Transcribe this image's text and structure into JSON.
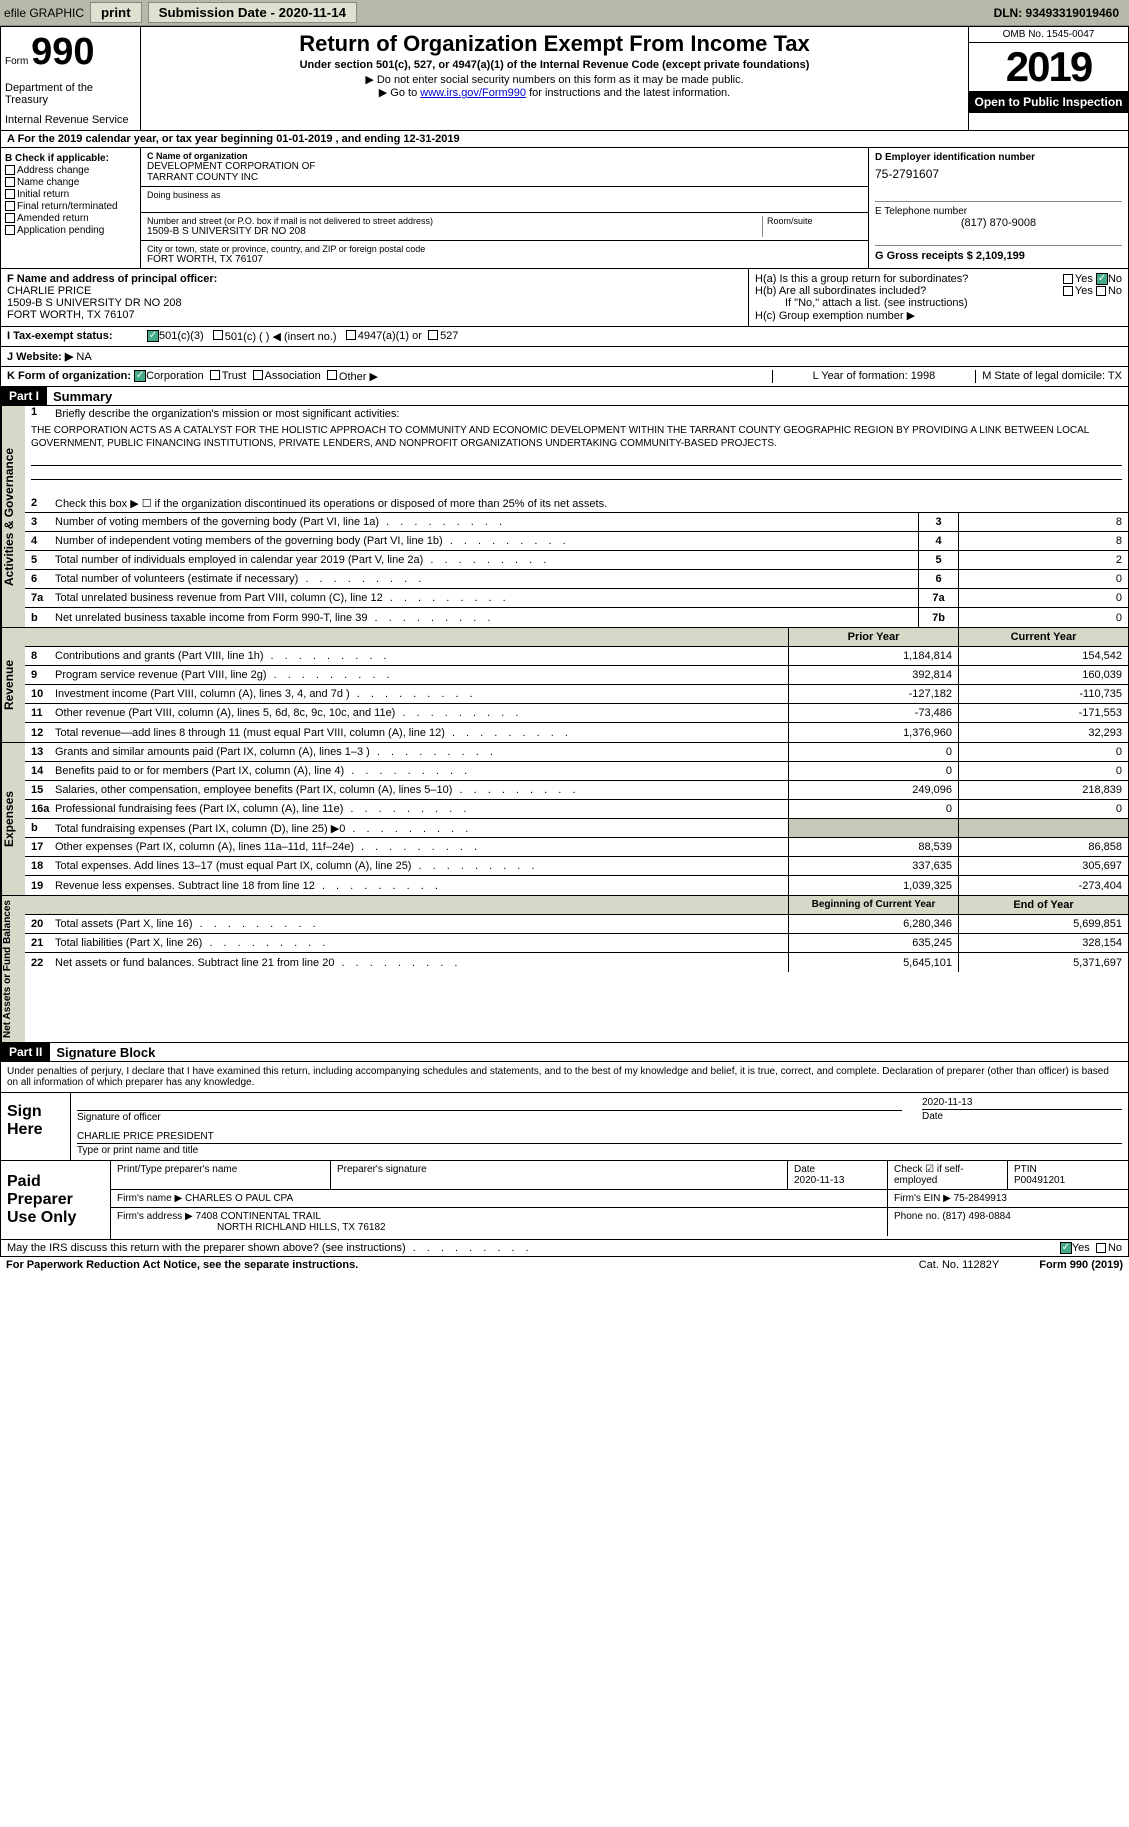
{
  "toolbar": {
    "efile": "efile GRAPHIC",
    "print": "print",
    "submission_label": "Submission Date - 2020-11-14",
    "dln": "DLN: 93493319019460"
  },
  "header": {
    "form_label": "Form",
    "form_number": "990",
    "dept1": "Department of the Treasury",
    "dept2": "Internal Revenue Service",
    "title": "Return of Organization Exempt From Income Tax",
    "subtitle": "Under section 501(c), 527, or 4947(a)(1) of the Internal Revenue Code (except private foundations)",
    "note1": "▶ Do not enter social security numbers on this form as it may be made public.",
    "note2_pre": "▶ Go to ",
    "note2_link": "www.irs.gov/Form990",
    "note2_post": " for instructions and the latest information.",
    "omb": "OMB No. 1545-0047",
    "year": "2019",
    "open": "Open to Public Inspection"
  },
  "line_a": "A For the 2019 calendar year, or tax year beginning 01-01-2019    , and ending 12-31-2019",
  "checkB": {
    "title": "B Check if applicable:",
    "items": [
      "Address change",
      "Name change",
      "Initial return",
      "Final return/terminated",
      "Amended return",
      "Application pending"
    ]
  },
  "boxC": {
    "label": "C Name of organization",
    "name1": "DEVELOPMENT CORPORATION OF",
    "name2": "TARRANT COUNTY INC",
    "dba": "Doing business as",
    "street_label": "Number and street (or P.O. box if mail is not delivered to street address)",
    "room_label": "Room/suite",
    "street": "1509-B S UNIVERSITY DR NO 208",
    "city_label": "City or town, state or province, country, and ZIP or foreign postal code",
    "city": "FORT WORTH, TX  76107"
  },
  "boxD": {
    "label": "D Employer identification number",
    "ein": "75-2791607",
    "tel_label": "E Telephone number",
    "tel": "(817) 870-9008",
    "gross_label": "G Gross receipts $ 2,109,199"
  },
  "boxF": {
    "label": "F  Name and address of principal officer:",
    "name": "CHARLIE PRICE",
    "addr1": "1509-B S UNIVERSITY DR NO 208",
    "addr2": "FORT WORTH, TX  76107"
  },
  "boxH": {
    "a": "H(a)  Is this a group return for subordinates?",
    "b": "H(b)  Are all subordinates included?",
    "note": "If \"No,\" attach a list. (see instructions)",
    "c": "H(c)  Group exemption number ▶",
    "yes": "Yes",
    "no": "No"
  },
  "rowI": {
    "label": "I   Tax-exempt status:",
    "o1": "501(c)(3)",
    "o2": "501(c) (  ) ◀ (insert no.)",
    "o3": "4947(a)(1) or",
    "o4": "527"
  },
  "rowJ": {
    "label": "J   Website: ▶",
    "val": "NA"
  },
  "rowK": {
    "label": "K Form of organization:",
    "o1": "Corporation",
    "o2": "Trust",
    "o3": "Association",
    "o4": "Other ▶",
    "l_label": "L Year of formation: 1998",
    "m_label": "M State of legal domicile: TX"
  },
  "part1": {
    "hdr": "Part I",
    "title": "Summary",
    "side1": "Activities & Governance",
    "side2": "Revenue",
    "side3": "Expenses",
    "side4": "Net Assets or Fund Balances",
    "q1": "Briefly describe the organization's mission or most significant activities:",
    "mission": "THE CORPORATION ACTS AS A CATALYST FOR THE HOLISTIC APPROACH TO COMMUNITY AND ECONOMIC DEVELOPMENT WITHIN THE TARRANT COUNTY GEOGRAPHIC REGION BY PROVIDING A LINK BETWEEN LOCAL GOVERNMENT, PUBLIC FINANCING INSTITUTIONS, PRIVATE LENDERS, AND NONPROFIT ORGANIZATIONS UNDERTAKING COMMUNITY-BASED PROJECTS.",
    "q2": "Check this box ▶ ☐  if the organization discontinued its operations or disposed of more than 25% of its net assets.",
    "rows_gov": [
      {
        "n": "3",
        "d": "Number of voting members of the governing body (Part VI, line 1a)",
        "box": "3",
        "v": "8"
      },
      {
        "n": "4",
        "d": "Number of independent voting members of the governing body (Part VI, line 1b)",
        "box": "4",
        "v": "8"
      },
      {
        "n": "5",
        "d": "Total number of individuals employed in calendar year 2019 (Part V, line 2a)",
        "box": "5",
        "v": "2"
      },
      {
        "n": "6",
        "d": "Total number of volunteers (estimate if necessary)",
        "box": "6",
        "v": "0"
      },
      {
        "n": "7a",
        "d": "Total unrelated business revenue from Part VIII, column (C), line 12",
        "box": "7a",
        "v": "0"
      },
      {
        "n": "b",
        "d": "Net unrelated business taxable income from Form 990-T, line 39",
        "box": "7b",
        "v": "0"
      }
    ],
    "hdr_prior": "Prior Year",
    "hdr_current": "Current Year",
    "rows_rev": [
      {
        "n": "8",
        "d": "Contributions and grants (Part VIII, line 1h)",
        "p": "1,184,814",
        "c": "154,542"
      },
      {
        "n": "9",
        "d": "Program service revenue (Part VIII, line 2g)",
        "p": "392,814",
        "c": "160,039"
      },
      {
        "n": "10",
        "d": "Investment income (Part VIII, column (A), lines 3, 4, and 7d )",
        "p": "-127,182",
        "c": "-110,735"
      },
      {
        "n": "11",
        "d": "Other revenue (Part VIII, column (A), lines 5, 6d, 8c, 9c, 10c, and 11e)",
        "p": "-73,486",
        "c": "-171,553"
      },
      {
        "n": "12",
        "d": "Total revenue—add lines 8 through 11 (must equal Part VIII, column (A), line 12)",
        "p": "1,376,960",
        "c": "32,293"
      }
    ],
    "rows_exp": [
      {
        "n": "13",
        "d": "Grants and similar amounts paid (Part IX, column (A), lines 1–3 )",
        "p": "0",
        "c": "0"
      },
      {
        "n": "14",
        "d": "Benefits paid to or for members (Part IX, column (A), line 4)",
        "p": "0",
        "c": "0"
      },
      {
        "n": "15",
        "d": "Salaries, other compensation, employee benefits (Part IX, column (A), lines 5–10)",
        "p": "249,096",
        "c": "218,839"
      },
      {
        "n": "16a",
        "d": "Professional fundraising fees (Part IX, column (A), line 11e)",
        "p": "0",
        "c": "0"
      },
      {
        "n": "b",
        "d": "Total fundraising expenses (Part IX, column (D), line 25) ▶0",
        "p": "",
        "c": "",
        "shaded": true
      },
      {
        "n": "17",
        "d": "Other expenses (Part IX, column (A), lines 11a–11d, 11f–24e)",
        "p": "88,539",
        "c": "86,858"
      },
      {
        "n": "18",
        "d": "Total expenses. Add lines 13–17 (must equal Part IX, column (A), line 25)",
        "p": "337,635",
        "c": "305,697"
      },
      {
        "n": "19",
        "d": "Revenue less expenses. Subtract line 18 from line 12",
        "p": "1,039,325",
        "c": "-273,404"
      }
    ],
    "hdr_begin": "Beginning of Current Year",
    "hdr_end": "End of Year",
    "rows_net": [
      {
        "n": "20",
        "d": "Total assets (Part X, line 16)",
        "p": "6,280,346",
        "c": "5,699,851"
      },
      {
        "n": "21",
        "d": "Total liabilities (Part X, line 26)",
        "p": "635,245",
        "c": "328,154"
      },
      {
        "n": "22",
        "d": "Net assets or fund balances. Subtract line 21 from line 20",
        "p": "5,645,101",
        "c": "5,371,697"
      }
    ]
  },
  "part2": {
    "hdr": "Part II",
    "title": "Signature Block",
    "decl": "Under penalties of perjury, I declare that I have examined this return, including accompanying schedules and statements, and to the best of my knowledge and belief, it is true, correct, and complete. Declaration of preparer (other than officer) is based on all information of which preparer has any knowledge.",
    "sign_here": "Sign Here",
    "sig_officer": "Signature of officer",
    "sig_date": "2020-11-13",
    "date_label": "Date",
    "officer_name": "CHARLIE PRICE PRESIDENT",
    "officer_label": "Type or print name and title",
    "paid_label": "Paid Preparer Use Only",
    "prep_name_label": "Print/Type preparer's name",
    "prep_sig_label": "Preparer's signature",
    "prep_date_label": "Date",
    "prep_date": "2020-11-13",
    "prep_check": "Check ☑ if self-employed",
    "ptin_label": "PTIN",
    "ptin": "P00491201",
    "firm_name_label": "Firm's name    ▶",
    "firm_name": "CHARLES O PAUL CPA",
    "firm_ein_label": "Firm's EIN ▶",
    "firm_ein": "75-2849913",
    "firm_addr_label": "Firm's address ▶",
    "firm_addr1": "7408 CONTINENTAL TRAIL",
    "firm_addr2": "NORTH RICHLAND HILLS, TX  76182",
    "phone_label": "Phone no.",
    "phone": "(817) 498-0884",
    "discuss": "May the IRS discuss this return with the preparer shown above? (see instructions)"
  },
  "footer": {
    "paperwork": "For Paperwork Reduction Act Notice, see the separate instructions.",
    "cat": "Cat. No. 11282Y",
    "form": "Form 990 (2019)"
  }
}
